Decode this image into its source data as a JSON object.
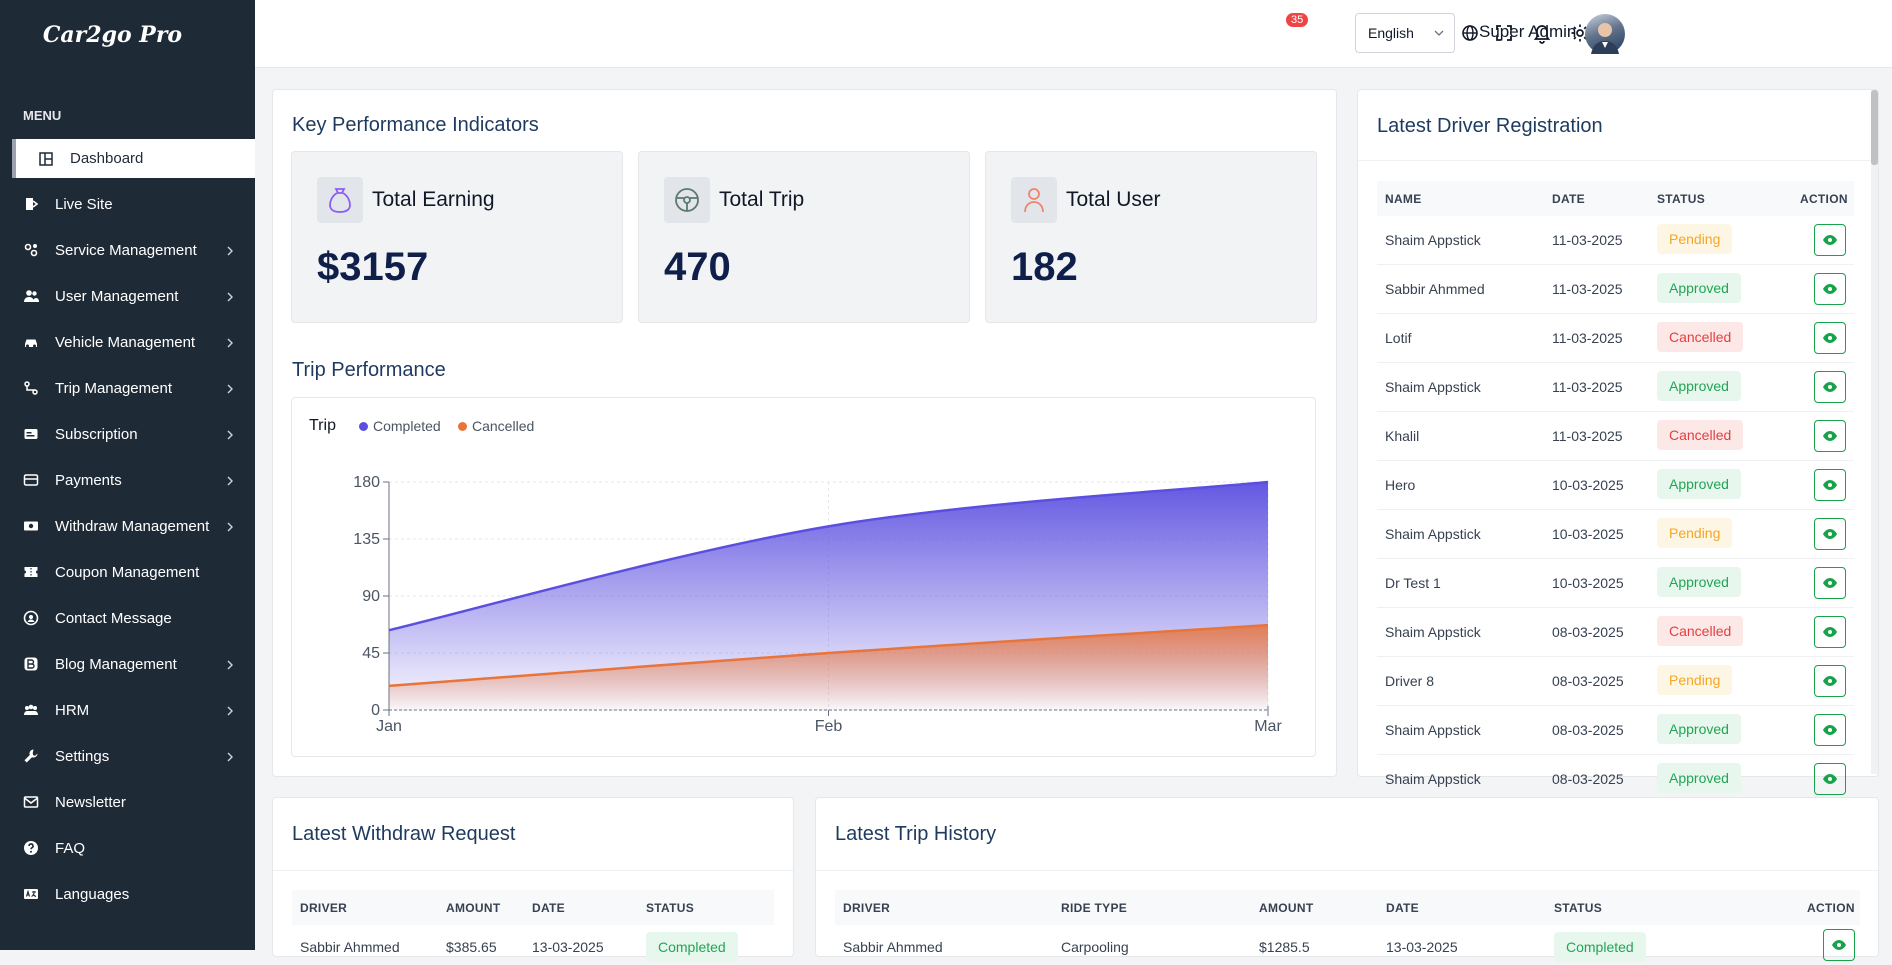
{
  "app": {
    "logo": "Car2go Pro"
  },
  "sidebar": {
    "menu_label": "MENU",
    "active": {
      "label": "Dashboard",
      "icon": "dashboard-icon"
    },
    "items": [
      {
        "label": "Live Site",
        "icon": "live-site-icon",
        "chevron": false
      },
      {
        "label": "Service Management",
        "icon": "service-icon",
        "chevron": true
      },
      {
        "label": "User Management",
        "icon": "users-icon",
        "chevron": true
      },
      {
        "label": "Vehicle Management",
        "icon": "car-icon",
        "chevron": true
      },
      {
        "label": "Trip Management",
        "icon": "trip-icon",
        "chevron": true
      },
      {
        "label": "Subscription",
        "icon": "subscription-icon",
        "chevron": true
      },
      {
        "label": "Payments",
        "icon": "card-icon",
        "chevron": true
      },
      {
        "label": "Withdraw Management",
        "icon": "money-icon",
        "chevron": true
      },
      {
        "label": "Coupon Management",
        "icon": "coupon-icon",
        "chevron": false
      },
      {
        "label": "Contact Message",
        "icon": "contact-icon",
        "chevron": false
      },
      {
        "label": "Blog Management",
        "icon": "blog-icon",
        "chevron": true
      },
      {
        "label": "HRM",
        "icon": "hrm-icon",
        "chevron": true
      },
      {
        "label": "Settings",
        "icon": "wrench-icon",
        "chevron": true
      },
      {
        "label": "Newsletter",
        "icon": "mail-icon",
        "chevron": false
      },
      {
        "label": "FAQ",
        "icon": "question-icon",
        "chevron": false
      },
      {
        "label": "Languages",
        "icon": "language-icon",
        "chevron": false
      }
    ]
  },
  "header": {
    "notification_count": "35",
    "language": "English",
    "user_name": "Super Admin"
  },
  "kpi": {
    "title": "Key Performance Indicators",
    "cards": [
      {
        "label": "Total Earning",
        "value": "$3157"
      },
      {
        "label": "Total Trip",
        "value": "470"
      },
      {
        "label": "Total User",
        "value": "182"
      }
    ]
  },
  "trip_performance": {
    "title": "Trip Performance"
  },
  "chart_data": {
    "type": "area",
    "title": "Trip",
    "categories": [
      "Jan",
      "Feb",
      "Mar"
    ],
    "series": [
      {
        "name": "Completed",
        "values": [
          63,
          145,
          180
        ],
        "color": "#5b4fe0"
      },
      {
        "name": "Cancelled",
        "values": [
          19,
          45,
          67
        ],
        "color": "#e8743b"
      }
    ],
    "ylim": [
      0,
      180
    ],
    "yticks": [
      "0",
      "45",
      "90",
      "135",
      "180"
    ],
    "legend": "top-left"
  },
  "driver_registration": {
    "title": "Latest Driver Registration",
    "columns": [
      "NAME",
      "DATE",
      "STATUS",
      "ACTION"
    ],
    "rows": [
      {
        "name": "Shaim Appstick",
        "date": "11-03-2025",
        "status": "Pending"
      },
      {
        "name": "Sabbir Ahmmed",
        "date": "11-03-2025",
        "status": "Approved"
      },
      {
        "name": "Lotif",
        "date": "11-03-2025",
        "status": "Cancelled"
      },
      {
        "name": "Shaim Appstick",
        "date": "11-03-2025",
        "status": "Approved"
      },
      {
        "name": "Khalil",
        "date": "11-03-2025",
        "status": "Cancelled"
      },
      {
        "name": "Hero",
        "date": "10-03-2025",
        "status": "Approved"
      },
      {
        "name": "Shaim Appstick",
        "date": "10-03-2025",
        "status": "Pending"
      },
      {
        "name": "Dr Test 1",
        "date": "10-03-2025",
        "status": "Approved"
      },
      {
        "name": "Shaim Appstick",
        "date": "08-03-2025",
        "status": "Cancelled"
      },
      {
        "name": "Driver 8",
        "date": "08-03-2025",
        "status": "Pending"
      },
      {
        "name": "Shaim Appstick",
        "date": "08-03-2025",
        "status": "Approved"
      },
      {
        "name": "Shaim Appstick",
        "date": "08-03-2025",
        "status": "Approved"
      }
    ]
  },
  "withdraw": {
    "title": "Latest Withdraw Request",
    "columns": [
      "DRIVER",
      "AMOUNT",
      "DATE",
      "STATUS"
    ],
    "rows": [
      {
        "driver": "Sabbir Ahmmed",
        "amount": "$385.65",
        "date": "13-03-2025",
        "status": "Completed"
      }
    ]
  },
  "trip_history": {
    "title": "Latest Trip History",
    "columns": [
      "DRIVER",
      "RIDE TYPE",
      "AMOUNT",
      "DATE",
      "STATUS",
      "ACTION"
    ],
    "rows": [
      {
        "driver": "Sabbir Ahmmed",
        "ride_type": "Carpooling",
        "amount": "$1285.5",
        "date": "13-03-2025",
        "status": "Completed"
      }
    ]
  }
}
